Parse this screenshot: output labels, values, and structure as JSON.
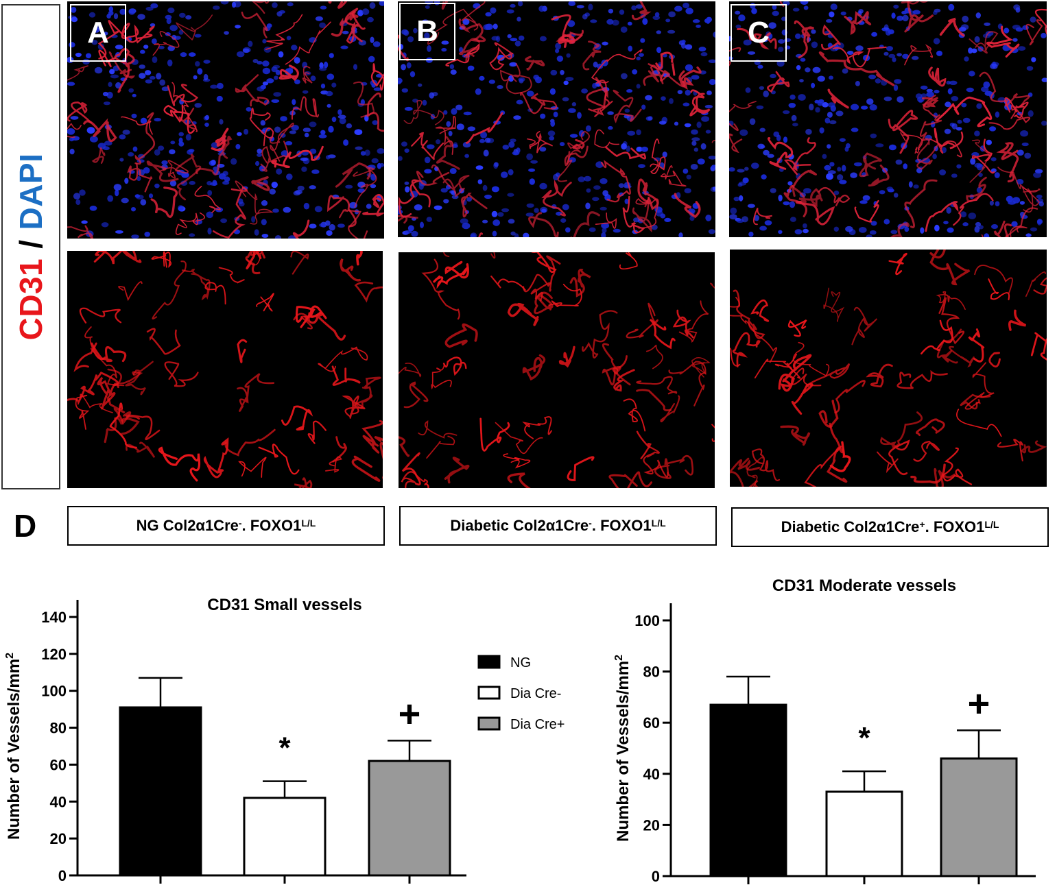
{
  "stain": {
    "cd31": "CD31",
    "slash": "/",
    "dapi": "DAPI"
  },
  "panels": [
    {
      "letter": "A",
      "group_main": "NG Col2α1Cre",
      "group_sign": "-",
      "group_mid": ". FOXO1",
      "group_sup": "L/L"
    },
    {
      "letter": "B",
      "group_main": "Diabetic Col2α1Cre",
      "group_sign": "-",
      "group_mid": ". FOXO1",
      "group_sup": "L/L"
    },
    {
      "letter": "C",
      "group_main": "Diabetic Col2α1Cre",
      "group_sign": "+",
      "group_mid": ". FOXO1",
      "group_sup": "L/L"
    }
  ],
  "panel_d_letter": "D",
  "colors": {
    "cd31": "#e8161b",
    "dapi": "#1c6fc4",
    "ng": "#000000",
    "dia_cre_minus": "#ffffff",
    "dia_cre_plus": "#999999"
  },
  "legend": [
    {
      "label": "NG",
      "color": "#000000"
    },
    {
      "label": "Dia Cre-",
      "color": "#ffffff"
    },
    {
      "label": "Dia Cre+",
      "color": "#999999"
    }
  ],
  "chart_data": [
    {
      "type": "bar",
      "title": "CD31 Small vessels",
      "ylabel": "Number of Vessels/mm",
      "ylabel_sup": "2",
      "ylim": [
        0,
        140
      ],
      "yticks": [
        0,
        20,
        40,
        60,
        80,
        100,
        120,
        140
      ],
      "categories": [
        "NG",
        "Dia Cre-",
        "Dia Cre+"
      ],
      "values": [
        91,
        42,
        62
      ],
      "errors": [
        16,
        9,
        11
      ],
      "annotations": [
        "",
        "*",
        "+"
      ]
    },
    {
      "type": "bar",
      "title": "CD31 Moderate vessels",
      "ylabel": "Number of Vessels/mm",
      "ylabel_sup": "2",
      "ylim": [
        0,
        100
      ],
      "yticks": [
        0,
        20,
        40,
        60,
        80,
        100
      ],
      "categories": [
        "NG",
        "Dia Cre-",
        "Dia Cre+"
      ],
      "values": [
        67,
        33,
        46
      ],
      "errors": [
        11,
        8,
        11
      ],
      "annotations": [
        "",
        "*",
        "+"
      ]
    }
  ]
}
